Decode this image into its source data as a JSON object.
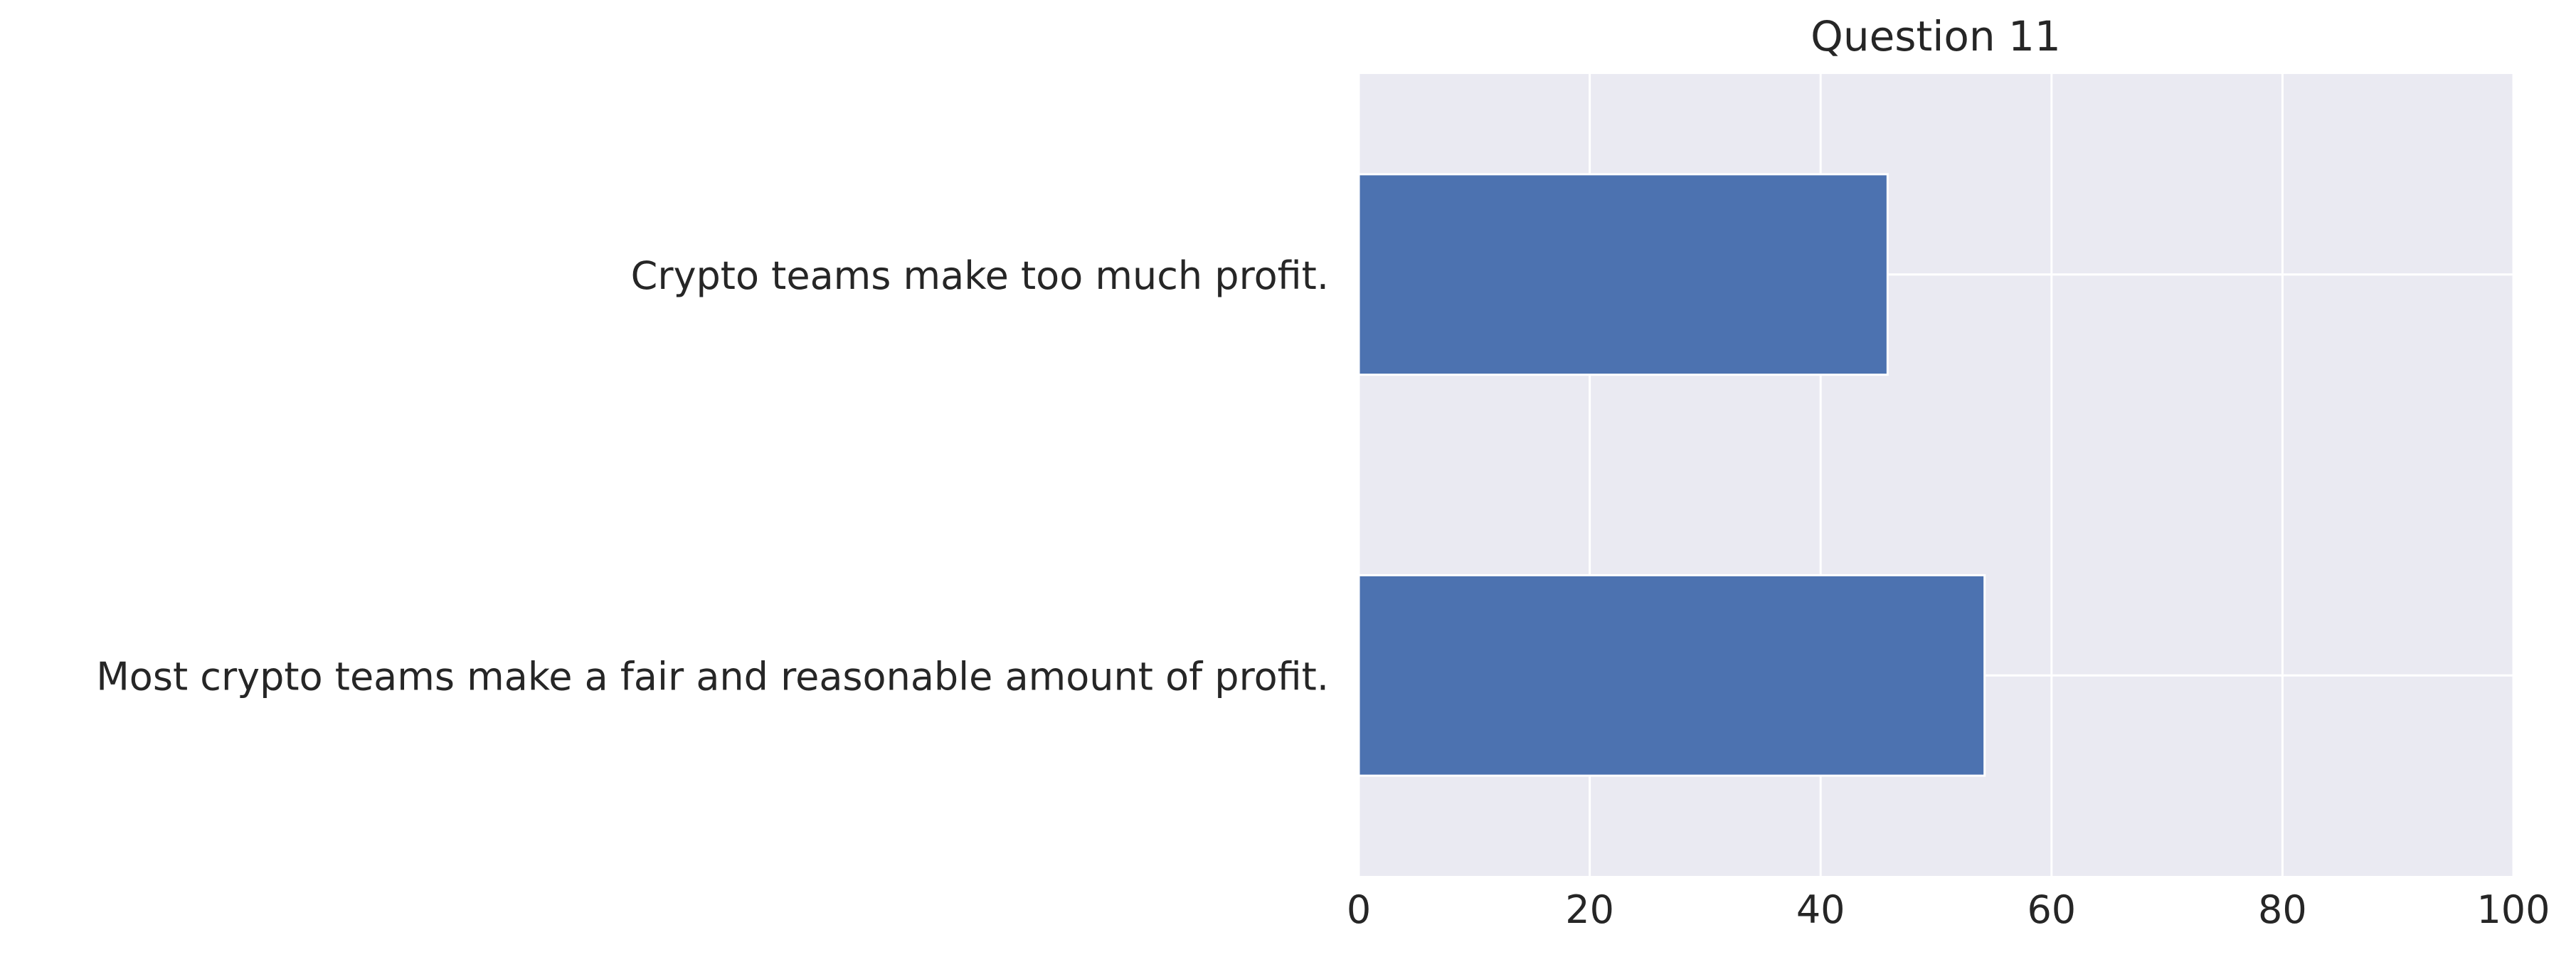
{
  "chart_data": {
    "type": "bar",
    "orientation": "horizontal",
    "title": "Question 11",
    "xlabel": "",
    "ylabel": "",
    "categories": [
      "Crypto teams make too much profit.",
      "Most crypto teams make a fair and reasonable amount of profit."
    ],
    "values": [
      45.8,
      54.2
    ],
    "xlim": [
      0,
      100
    ],
    "xticks": [
      0,
      20,
      40,
      60,
      80,
      100
    ],
    "grid": true,
    "legend": "none",
    "colors": {
      "bar": "#4c72b0",
      "plot_background": "#eaeaf2",
      "grid": "#ffffff",
      "text": "#262626"
    }
  }
}
